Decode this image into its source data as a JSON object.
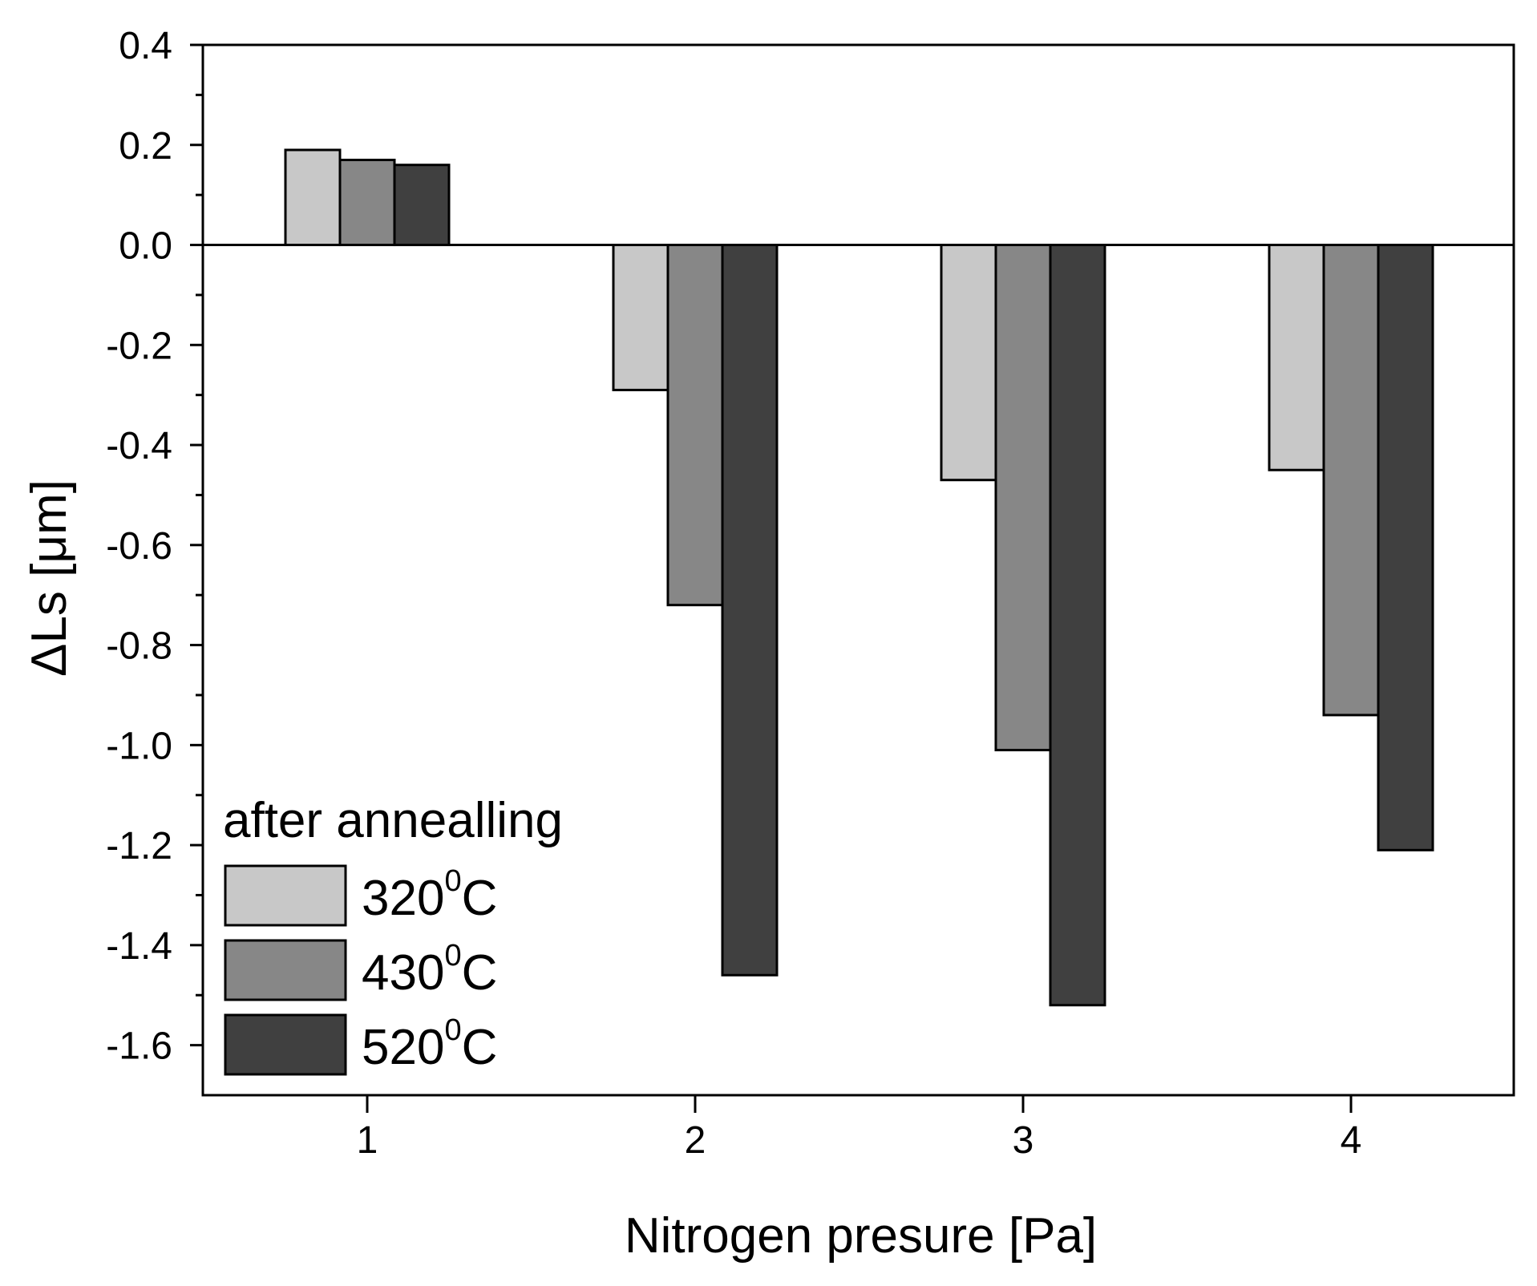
{
  "chart_data": {
    "type": "bar",
    "title": "",
    "xlabel": "Nitrogen presure [Pa]",
    "ylabel": "ΔLs [μm]",
    "categories": [
      "1",
      "2",
      "3",
      "4"
    ],
    "ylim": [
      -1.7,
      0.4
    ],
    "yticks": [
      "0.4",
      "0.2",
      "0.0",
      "-0.2",
      "-0.4",
      "-0.6",
      "-0.8",
      "-1.0",
      "-1.2",
      "-1.4",
      "-1.6"
    ],
    "grid": false,
    "legend": {
      "title": "after annealling",
      "position": "bottom-left",
      "entries": [
        {
          "base": "320",
          "sup": "0",
          "unit": "C"
        },
        {
          "base": "430",
          "sup": "0",
          "unit": "C"
        },
        {
          "base": "520",
          "sup": "0",
          "unit": "C"
        }
      ]
    },
    "series": [
      {
        "name": "320⁰C",
        "color": "#c8c8c8",
        "values": [
          0.19,
          -0.29,
          -0.47,
          -0.45
        ]
      },
      {
        "name": "430⁰C",
        "color": "#878787",
        "values": [
          0.17,
          -0.72,
          -1.01,
          -0.94
        ]
      },
      {
        "name": "520⁰C",
        "color": "#404040",
        "values": [
          0.16,
          -1.46,
          -1.52,
          -1.21
        ]
      }
    ]
  }
}
